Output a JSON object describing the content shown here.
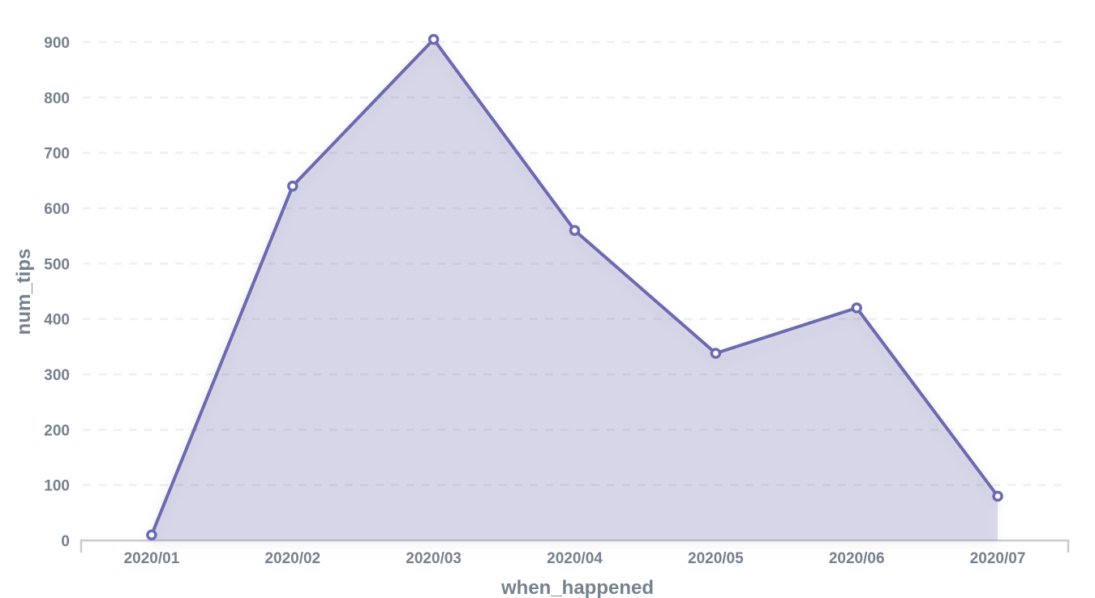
{
  "chart_data": {
    "type": "area",
    "title": "",
    "categories": [
      "2020/01",
      "2020/02",
      "2020/03",
      "2020/04",
      "2020/05",
      "2020/06",
      "2020/07"
    ],
    "values": [
      10,
      640,
      905,
      560,
      338,
      420,
      80
    ],
    "series_name": "num_tips",
    "xlabel": "when_happened",
    "ylabel": "num_tips",
    "ylim": [
      0,
      900
    ],
    "ytick_step": 100,
    "yticks": [
      0,
      100,
      200,
      300,
      400,
      500,
      600,
      700,
      800,
      900
    ],
    "grid": "horizontal-dashed",
    "legend": "none",
    "markers": "open-circle",
    "colors": {
      "line": "#6b6ab0",
      "area_fill": "rgba(107,106,176,0.22)",
      "marker_fill": "#ffffff",
      "marker_stroke": "#6b6ab0",
      "gridline": "#efefef",
      "axis_line": "#c7ccd4",
      "label_text": "#76818f"
    }
  }
}
